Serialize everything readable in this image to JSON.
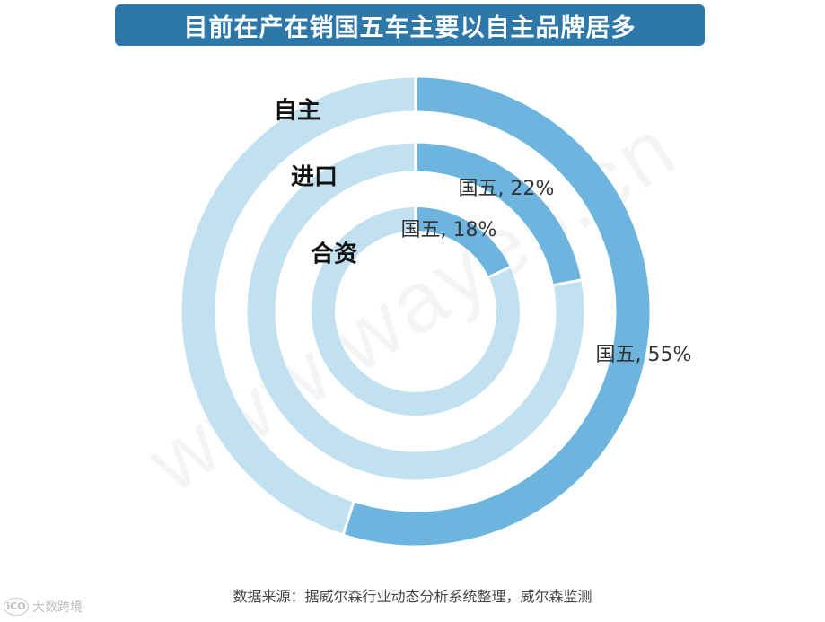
{
  "title": "目前在产在销国五车主要以自主品牌居多",
  "source": "数据来源：据威尔森行业动态分析系统整理，威尔森监测",
  "watermark": "www.wayes.cn",
  "corner_logo": {
    "mark": "iCO",
    "text": "大数跨境"
  },
  "colors": {
    "highlight": "#6db5de",
    "remainder": "#c2e1f0",
    "banner": "#2d78a8"
  },
  "chart_data": {
    "type": "pie",
    "style": "concentric-rings",
    "title": "目前在产在销国五车主要以自主品牌居多",
    "rings": [
      {
        "name": "自主",
        "segment_label": "国五",
        "value": 55,
        "label": "国五, 55%"
      },
      {
        "name": "进口",
        "segment_label": "国五",
        "value": 22,
        "label": "国五, 22%"
      },
      {
        "name": "合资",
        "segment_label": "国五",
        "value": 18,
        "label": "国五, 18%"
      }
    ]
  }
}
